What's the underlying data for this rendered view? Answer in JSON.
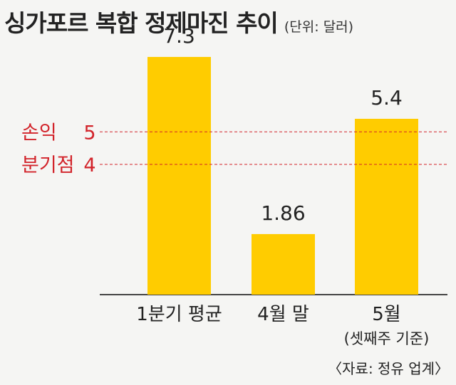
{
  "title": "싱가포르 복합 정제마진 추이",
  "unit": "(단위: 달러)",
  "source": "〈자료: 정유 업계〉",
  "chart_data": {
    "type": "bar",
    "categories": [
      "1분기 평균",
      "4월 말",
      "5월"
    ],
    "category_sublabels": [
      "",
      "",
      "(셋째주 기준)"
    ],
    "values": [
      7.3,
      1.86,
      5.4
    ],
    "value_labels": [
      "7.3",
      "1.86",
      "5.4"
    ],
    "ylim": [
      0,
      8.0
    ],
    "grid": false,
    "bar_color": "#ffcc00",
    "reference_lines": [
      {
        "label": "손익",
        "tick": "5",
        "value": 5,
        "color": "#d2232a"
      },
      {
        "label": "분기점",
        "tick": "4",
        "value": 4,
        "color": "#d2232a"
      }
    ]
  }
}
